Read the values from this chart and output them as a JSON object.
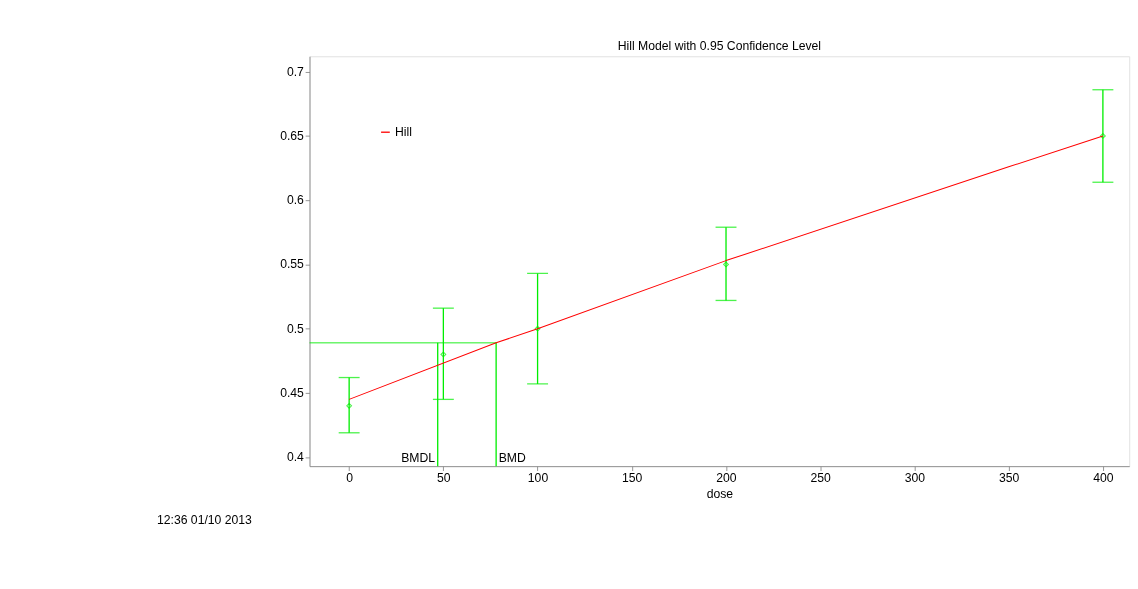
{
  "chart_data": {
    "type": "scatter",
    "title": "Hill Model with 0.95 Confidence Level",
    "xlabel": "dose",
    "x": [
      0,
      50,
      100,
      200,
      400
    ],
    "series": [
      {
        "color": "#00ee00",
        "marker": "diamond",
        "values": [
          0.44,
          0.48,
          0.5,
          0.55,
          0.65
        ],
        "errors": [
          [
            0.419,
            0.462
          ],
          [
            0.445,
            0.516
          ],
          [
            0.457,
            0.543
          ],
          [
            0.522,
            0.579
          ],
          [
            0.614,
            0.686
          ]
        ]
      },
      {
        "type": "line",
        "name": "Hill",
        "color": "#ff0000",
        "x": [
          0,
          78,
          100,
          200,
          350,
          400
        ],
        "values": [
          0.445,
          0.489,
          0.5,
          0.553,
          0.626,
          0.65
        ]
      }
    ],
    "ref_lines": [
      {
        "axis": "x",
        "value": 47,
        "label": "BMDL",
        "color": "#00ee00"
      },
      {
        "axis": "x",
        "value": 78,
        "label": "BMD",
        "color": "#00ee00"
      },
      {
        "axis": "y",
        "value": 0.489,
        "color": "#00ee00"
      }
    ],
    "xlim": [
      -21,
      414
    ],
    "xticks": [
      0,
      50,
      100,
      150,
      200,
      250,
      300,
      350,
      400
    ],
    "ylim": [
      0.393,
      0.712
    ],
    "yticks": [
      0.4,
      0.45,
      0.5,
      0.55,
      0.6,
      0.65,
      0.7
    ],
    "legend": "top left",
    "grid": false,
    "annotations": [
      "12:36 01/10 2013"
    ]
  }
}
